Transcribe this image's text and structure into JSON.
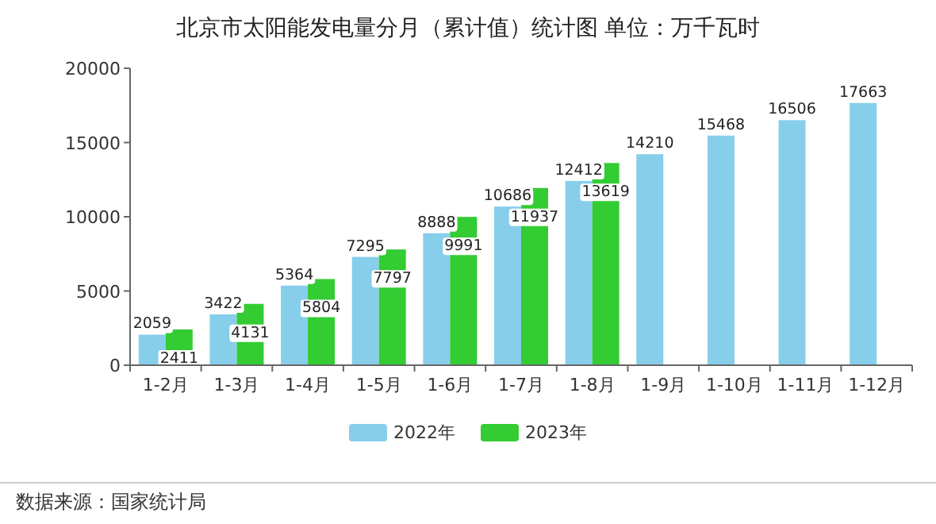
{
  "chart_data": {
    "type": "bar",
    "title": "北京市太阳能发电量分月（累计值）统计图 单位：万千瓦时",
    "categories": [
      "1-2月",
      "1-3月",
      "1-4月",
      "1-5月",
      "1-6月",
      "1-7月",
      "1-8月",
      "1-9月",
      "1-10月",
      "1-11月",
      "1-12月"
    ],
    "series": [
      {
        "name": "2022年",
        "color": "#87ceeb",
        "values": [
          2059,
          3422,
          5364,
          7295,
          8888,
          10686,
          12412,
          14210,
          15468,
          16506,
          17663
        ]
      },
      {
        "name": "2023年",
        "color": "#33cc33",
        "values": [
          2411,
          4131,
          5804,
          7797,
          9991,
          11937,
          13619,
          null,
          null,
          null,
          null
        ]
      }
    ],
    "ylim": [
      0,
      20000
    ],
    "yticks": [
      0,
      5000,
      10000,
      15000,
      20000
    ],
    "data_labels": true,
    "legend": "bottom",
    "annotations": [
      "数据来源：国家统计局"
    ]
  }
}
